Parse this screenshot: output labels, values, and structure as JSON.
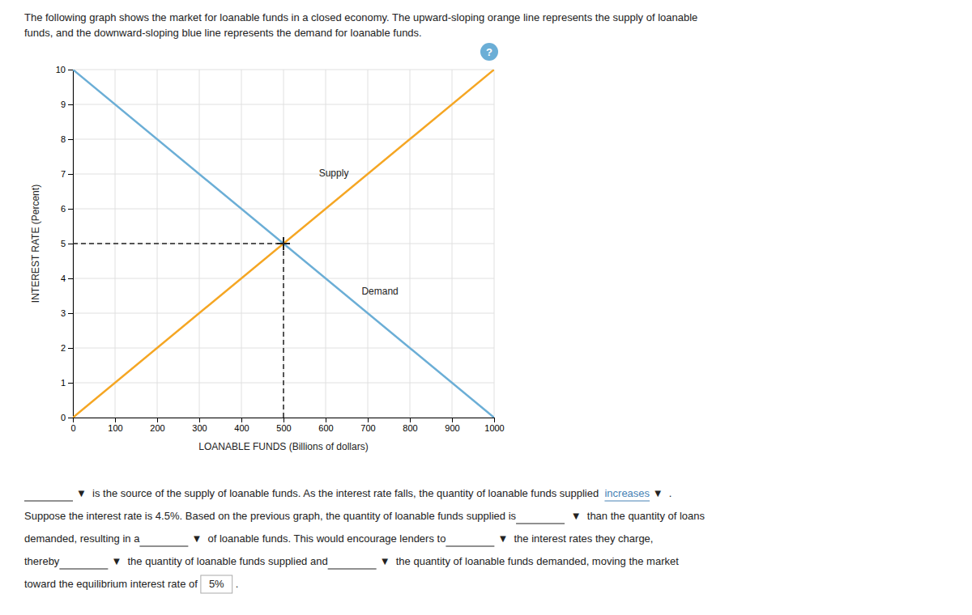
{
  "chart_data": {
    "type": "line",
    "subtitle": [
      "The following graph shows the market for loanable funds in a closed economy. The upward-sloping orange line represents the supply of loanable",
      "funds, and the downward-sloping blue line represents the demand for loanable funds."
    ],
    "x_label": "LOANABLE FUNDS (Billions of dollars)",
    "y_label": "INTEREST RATE (Percent)",
    "x": [
      0,
      1000
    ],
    "series": [
      {
        "name": "Supply",
        "color": "#F5A623",
        "values": [
          0,
          10
        ]
      },
      {
        "name": "Demand",
        "color": "#6BAED6",
        "values": [
          10,
          0
        ]
      }
    ],
    "equilibrium": {
      "x": 500,
      "y": 5,
      "color": "#222222",
      "marker": "plus",
      "line_style": "dashed"
    },
    "xlim": [
      0,
      1000
    ],
    "ylim": [
      0,
      10
    ],
    "xticks": [
      0,
      100,
      200,
      300,
      400,
      500,
      600,
      700,
      800,
      900,
      1000
    ],
    "yticks": [
      0,
      1,
      2,
      3,
      4,
      5,
      6,
      7,
      8,
      9,
      10
    ],
    "grid": true,
    "annotations": {
      "help": "?",
      "question": [
        [
          null,
          "▼  is the source of the supply of loanable funds. As the interest rate falls, the quantity of loanable funds supplied  ",
          {
            "text": "increases",
            "color": "#4682B4"
          },
          " ▼  ."
        ],
        [
          "Suppose the interest rate is 4.5%. Based on the previous graph, the quantity of loanable funds supplied is",
          null,
          " ▼  than the quantity of loans"
        ],
        [
          "demanded, resulting in a",
          null,
          "▼  of loanable funds. This would encourage lenders to",
          null,
          "▼  the interest rates they charge,"
        ],
        [
          "thereby",
          null,
          "▼  the quantity of loanable funds supplied and",
          null,
          "▼  the quantity of loanable funds demanded, moving the market"
        ],
        [
          "toward the equilibrium interest rate of",
          {
            "text": "5%"
          },
          "."
        ]
      ]
    }
  }
}
